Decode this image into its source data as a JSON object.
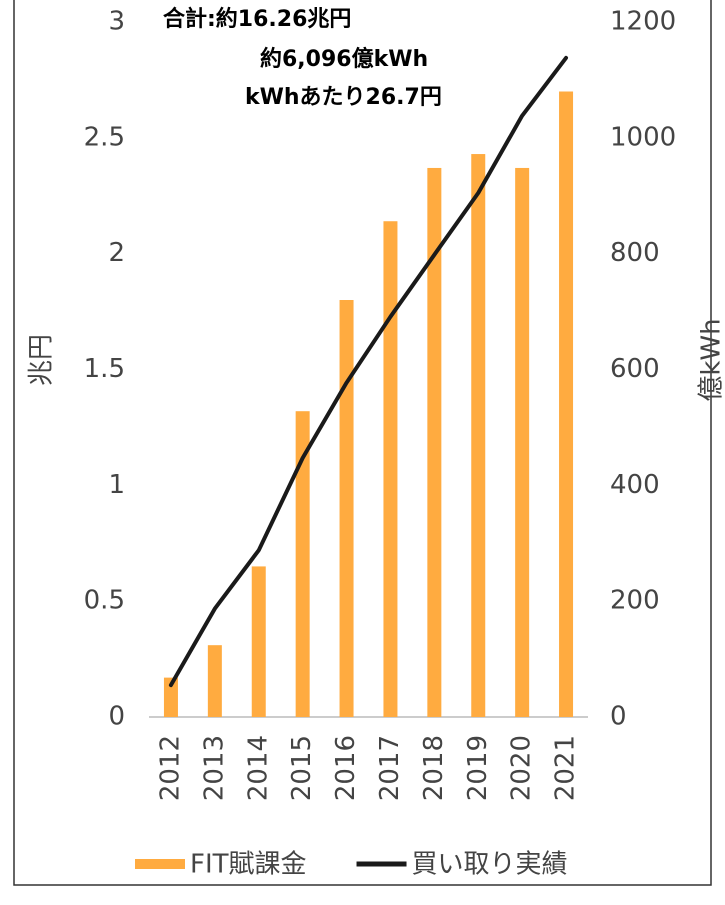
{
  "chart_data": {
    "type": "bar",
    "annotations": [
      "合計:約16.26兆円",
      "約6,096億kWh",
      "kWhあたり26.7円"
    ],
    "y_label": "兆円",
    "y2_label": "億kWh",
    "categories": [
      "2012",
      "2013",
      "2014",
      "2015",
      "2016",
      "2017",
      "2018",
      "2019",
      "2020",
      "2021"
    ],
    "series": [
      {
        "name": "FIT賦課金",
        "type": "bar",
        "color": "#ffab40",
        "values": [
          0.17,
          0.31,
          0.65,
          1.32,
          1.8,
          2.14,
          2.37,
          2.43,
          2.37,
          2.7
        ]
      },
      {
        "name": "買い取り実績",
        "type": "line",
        "color": "#1a1a1a",
        "axis": "y2",
        "values": [
          55,
          187,
          288,
          447,
          577,
          691,
          798,
          905,
          1038,
          1138
        ]
      }
    ],
    "ylim": [
      0,
      3
    ],
    "yticks": [
      0,
      0.5,
      1,
      1.5,
      2,
      2.5,
      3
    ],
    "y2lim": [
      0,
      1200
    ],
    "y2ticks": [
      0,
      200,
      400,
      600,
      800,
      1000,
      1200
    ],
    "grid": false,
    "legend": "bottom"
  }
}
